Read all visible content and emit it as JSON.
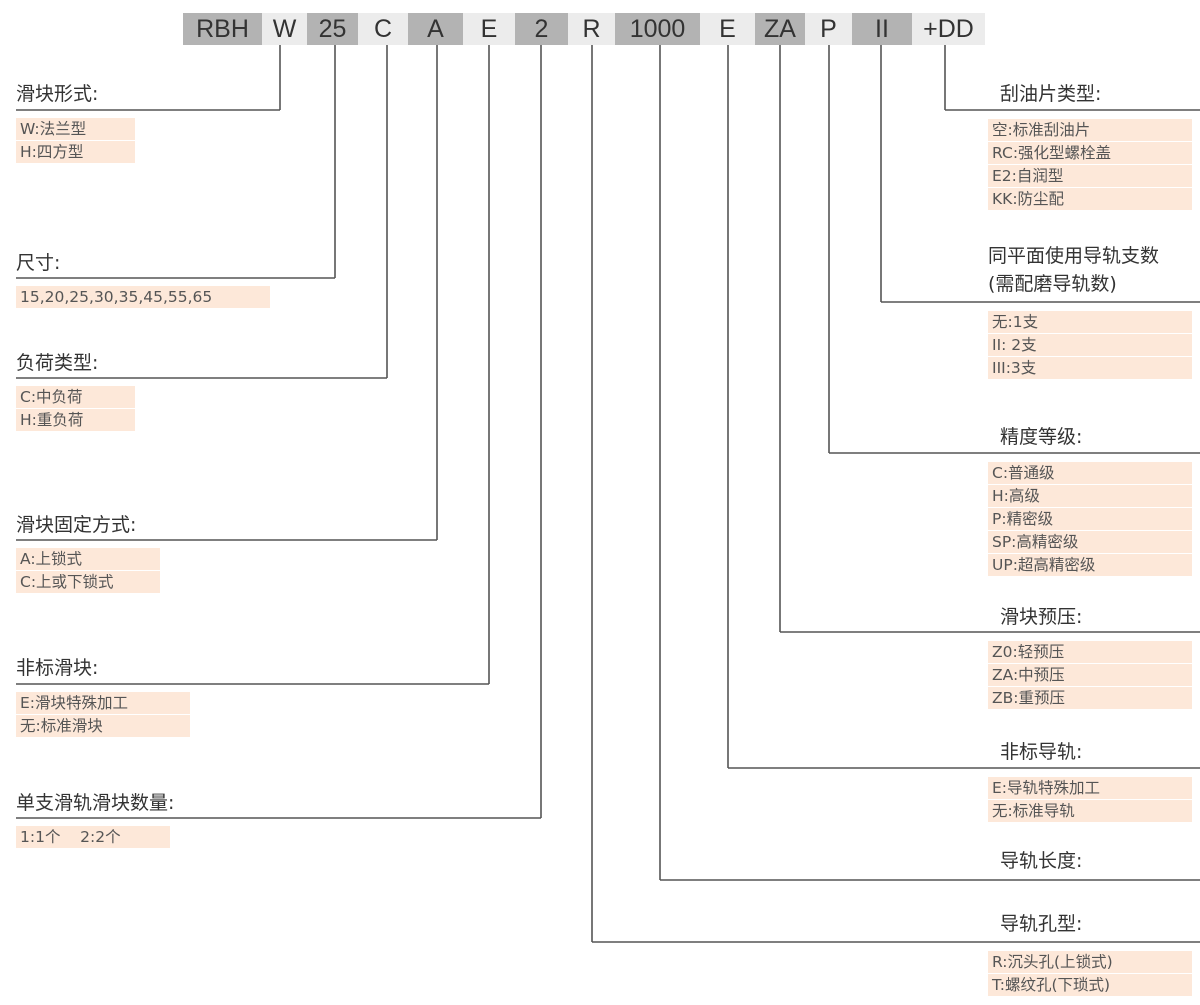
{
  "code_segments": [
    {
      "text": "RBH",
      "tone": "dark"
    },
    {
      "text": "W",
      "tone": "light"
    },
    {
      "text": "25",
      "tone": "dark"
    },
    {
      "text": "C",
      "tone": "light"
    },
    {
      "text": "A",
      "tone": "dark"
    },
    {
      "text": "E",
      "tone": "light"
    },
    {
      "text": "2",
      "tone": "dark"
    },
    {
      "text": "R",
      "tone": "light"
    },
    {
      "text": "1000",
      "tone": "dark"
    },
    {
      "text": "E",
      "tone": "light"
    },
    {
      "text": "ZA",
      "tone": "dark"
    },
    {
      "text": "P",
      "tone": "light"
    },
    {
      "text": "II",
      "tone": "dark"
    },
    {
      "text": "+DD",
      "tone": "light"
    }
  ],
  "left_sections": [
    {
      "title": [
        "滑块形式:"
      ],
      "options": [
        "W:法兰型",
        "H:四方型"
      ]
    },
    {
      "title": [
        "尺寸:"
      ],
      "options": [
        "15,20,25,30,35,45,55,65"
      ]
    },
    {
      "title": [
        "负荷类型:"
      ],
      "options": [
        "C:中负荷",
        "H:重负荷"
      ]
    },
    {
      "title": [
        "滑块固定方式:"
      ],
      "options": [
        "A:上锁式",
        "C:上或下锁式"
      ]
    },
    {
      "title": [
        "非标滑块:"
      ],
      "options": [
        "E:滑块特殊加工",
        "无:标准滑块"
      ]
    },
    {
      "title": [
        "单支滑轨滑块数量:"
      ],
      "options": [
        "1:1个    2:2个"
      ]
    }
  ],
  "right_sections": [
    {
      "title": [
        "刮油片类型:"
      ],
      "options": [
        "空:标准刮油片",
        "RC:强化型螺栓盖",
        "E2:自润型",
        "KK:防尘配"
      ]
    },
    {
      "title": [
        "同平面使用导轨支数",
        "(需配磨导轨数)"
      ],
      "options": [
        "无:1支",
        "II: 2支",
        "III:3支"
      ]
    },
    {
      "title": [
        "精度等级:"
      ],
      "options": [
        "C:普通级",
        "H:高级",
        "P:精密级",
        "SP:高精密级",
        "UP:超高精密级"
      ]
    },
    {
      "title": [
        "滑块预压:"
      ],
      "options": [
        "Z0:轻预压",
        "ZA:中预压",
        "ZB:重预压"
      ]
    },
    {
      "title": [
        "非标导轨:"
      ],
      "options": [
        "E:导轨特殊加工",
        "无:标准导轨"
      ]
    },
    {
      "title": [
        "导轨长度:"
      ],
      "options": []
    },
    {
      "title": [
        "导轨孔型:"
      ],
      "options": [
        "R:沉头孔(上锁式)",
        "T:螺纹孔(下琐式)"
      ]
    }
  ],
  "colors": {
    "dark_segment": "#b3b3b3",
    "light_segment": "#ececec",
    "option_bg": "#fde8d9",
    "line": "#555555"
  }
}
